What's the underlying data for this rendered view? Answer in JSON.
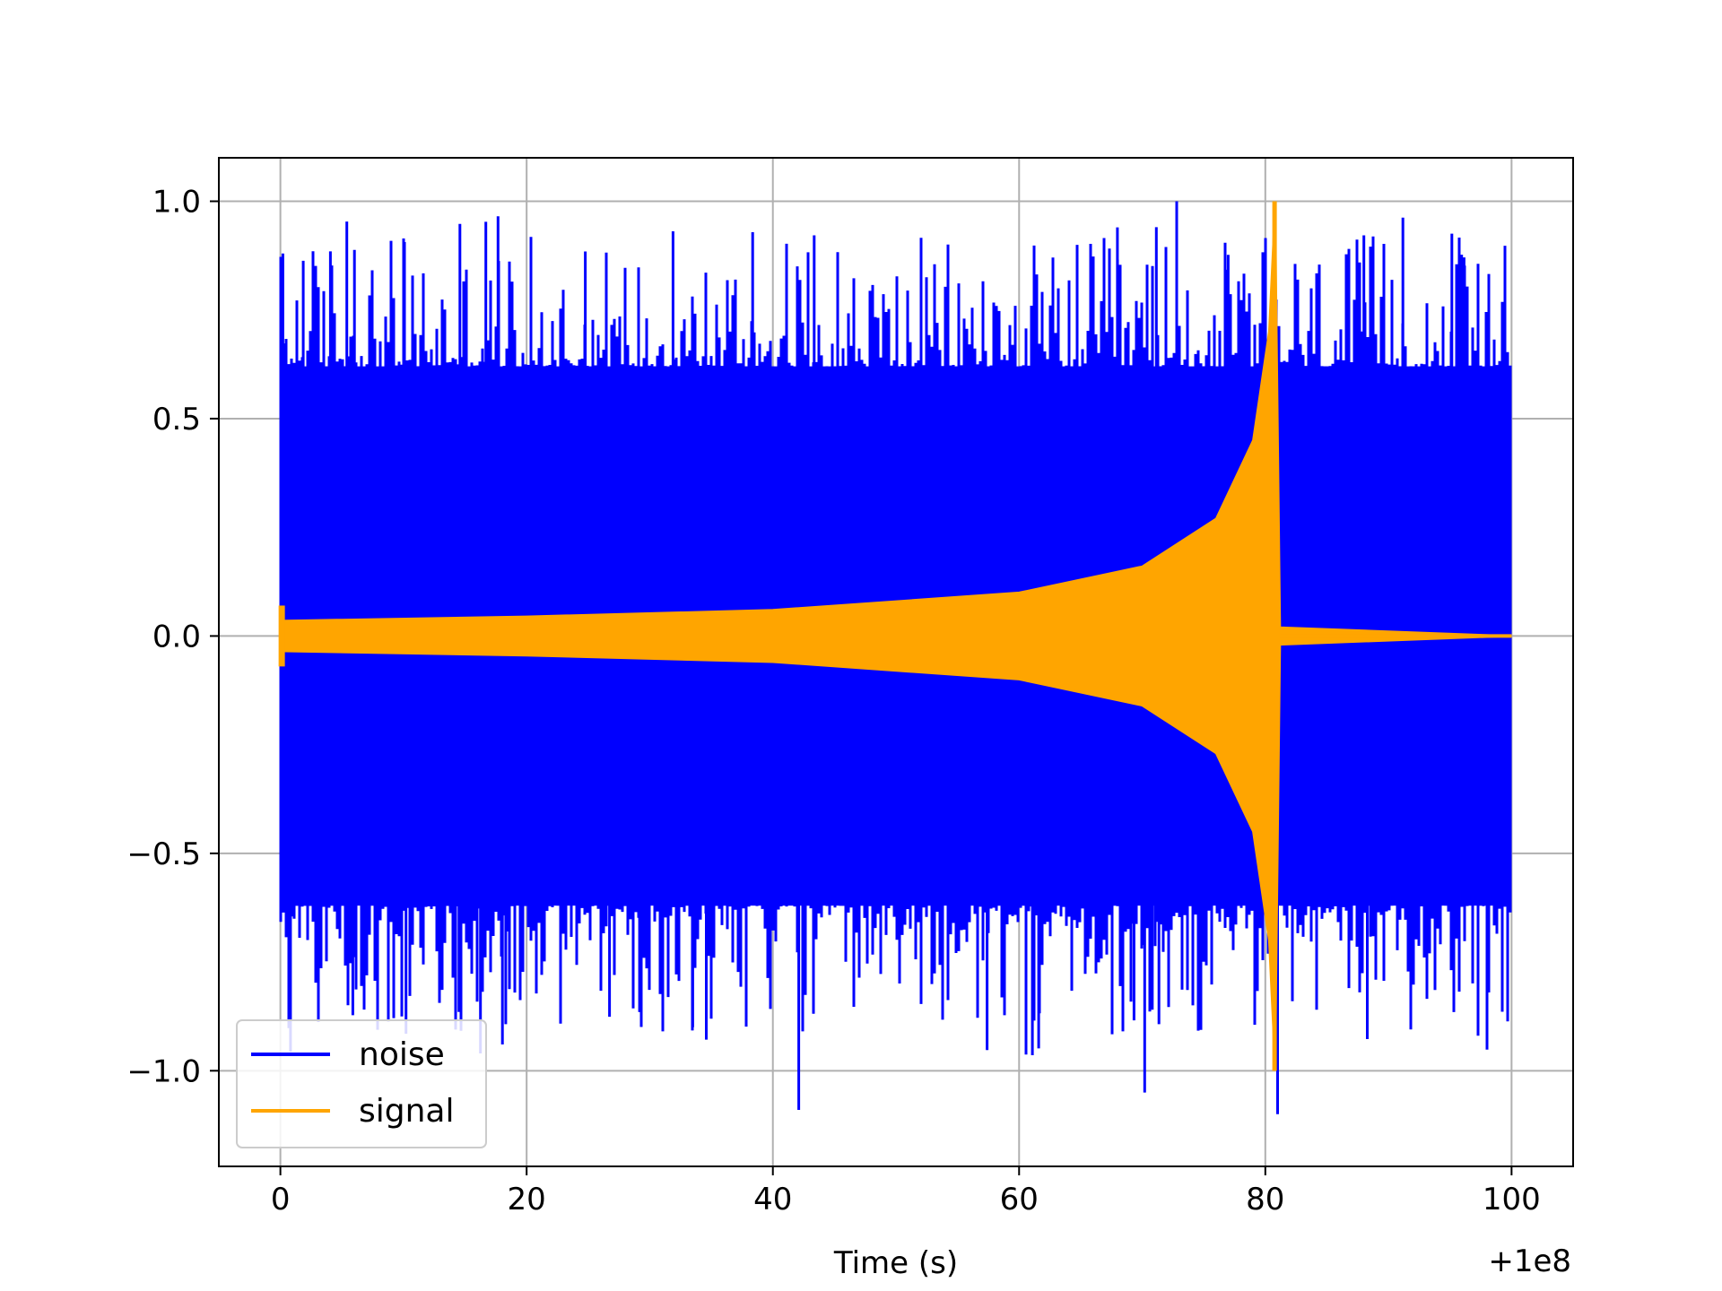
{
  "chart_data": {
    "type": "line",
    "title": "",
    "xlabel": "Time (s)",
    "ylabel": "",
    "x_offset_label": "+1e8",
    "xlim": [
      -5,
      105
    ],
    "ylim": [
      -1.22,
      1.1
    ],
    "x_ticks": [
      0,
      20,
      40,
      60,
      80,
      100
    ],
    "x_tick_labels": [
      "0",
      "20",
      "40",
      "60",
      "80",
      "100"
    ],
    "y_ticks": [
      1.0,
      0.5,
      0.0,
      -0.5,
      -1.0
    ],
    "y_tick_labels": [
      "1.0",
      "0.5",
      "0.0",
      "−0.5",
      "−1.0"
    ],
    "grid": true,
    "legend_position": "lower-left",
    "series": [
      {
        "name": "noise",
        "color": "#0000ff",
        "x_range": [
          0,
          100
        ],
        "typical_envelope": [
          -0.62,
          0.62
        ],
        "peak_max": 1.0,
        "peak_min": -1.1,
        "description_points": [
          {
            "x": 0.2,
            "y": 0.88
          },
          {
            "x": 72.8,
            "y": 1.0
          },
          {
            "x": 42.1,
            "y": -1.09
          },
          {
            "x": 81.0,
            "y": -1.1
          },
          {
            "x": 70.2,
            "y": -1.05
          }
        ]
      },
      {
        "name": "signal",
        "color": "#ffa500",
        "x_range": [
          0,
          100
        ],
        "envelope": [
          {
            "x": 0,
            "y": 0.035
          },
          {
            "x": 20,
            "y": 0.045
          },
          {
            "x": 40,
            "y": 0.06
          },
          {
            "x": 60,
            "y": 0.1
          },
          {
            "x": 70,
            "y": 0.16
          },
          {
            "x": 76,
            "y": 0.27
          },
          {
            "x": 79,
            "y": 0.45
          },
          {
            "x": 80.3,
            "y": 0.7
          },
          {
            "x": 80.8,
            "y": 1.0
          },
          {
            "x": 81.2,
            "y": 0.02
          },
          {
            "x": 100,
            "y": 0.0
          }
        ],
        "start_spike": 0.07
      }
    ]
  }
}
